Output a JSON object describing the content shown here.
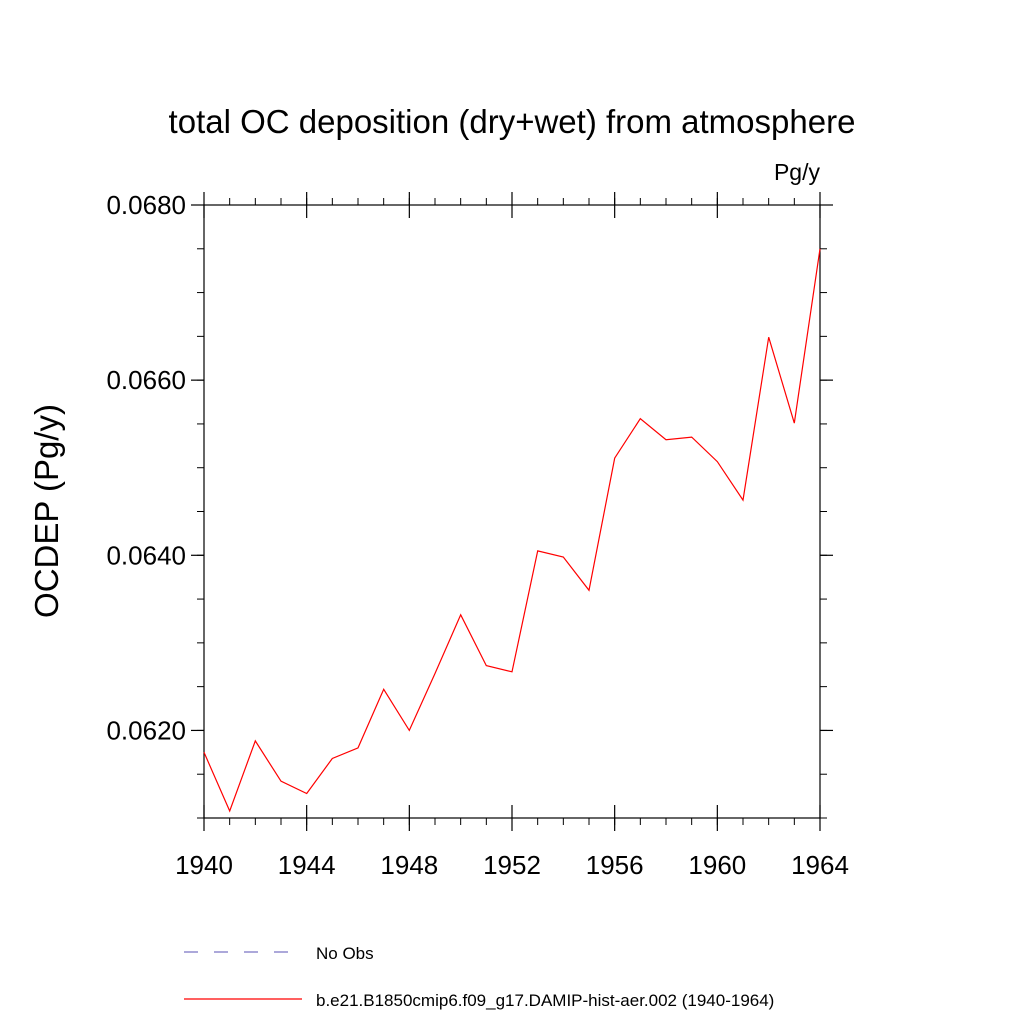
{
  "chart_data": {
    "type": "line",
    "title": "total OC deposition (dry+wet) from atmosphere",
    "units_label": "Pg/y",
    "ylabel": "OCDEP  (Pg/y)",
    "xlabel": "",
    "xlim": [
      1940,
      1964
    ],
    "ylim": [
      0.061,
      0.068
    ],
    "x_ticks": [
      1940,
      1944,
      1948,
      1952,
      1956,
      1960,
      1964
    ],
    "x_tick_labels": [
      "1940",
      "1944",
      "1948",
      "1952",
      "1956",
      "1960",
      "1964"
    ],
    "y_ticks": [
      0.062,
      0.064,
      0.066,
      0.068
    ],
    "y_tick_labels": [
      "0.0620",
      "0.0640",
      "0.0660",
      "0.0680"
    ],
    "y_minor_step": 0.0005,
    "x_minor_step": 1,
    "grid": false,
    "legend_placement": "bottom",
    "series": [
      {
        "name": "b.e21.B1850cmip6.f09_g17.DAMIP-hist-aer.002 (1940-1964)",
        "color": "#ff0000",
        "style": "solid",
        "x": [
          1940,
          1941,
          1942,
          1943,
          1944,
          1945,
          1946,
          1947,
          1948,
          1949,
          1950,
          1951,
          1952,
          1953,
          1954,
          1955,
          1956,
          1957,
          1958,
          1959,
          1960,
          1961,
          1962,
          1963,
          1964
        ],
        "values": [
          0.06175,
          0.06108,
          0.06188,
          0.06142,
          0.06128,
          0.06168,
          0.0618,
          0.06247,
          0.062,
          0.06265,
          0.06332,
          0.06274,
          0.06267,
          0.06405,
          0.06398,
          0.0636,
          0.06511,
          0.06556,
          0.06532,
          0.06535,
          0.06507,
          0.06463,
          0.06649,
          0.06551,
          0.0675
        ]
      },
      {
        "name": "No Obs",
        "color": "#7b74c4",
        "style": "dashed",
        "x": [],
        "values": []
      }
    ]
  }
}
